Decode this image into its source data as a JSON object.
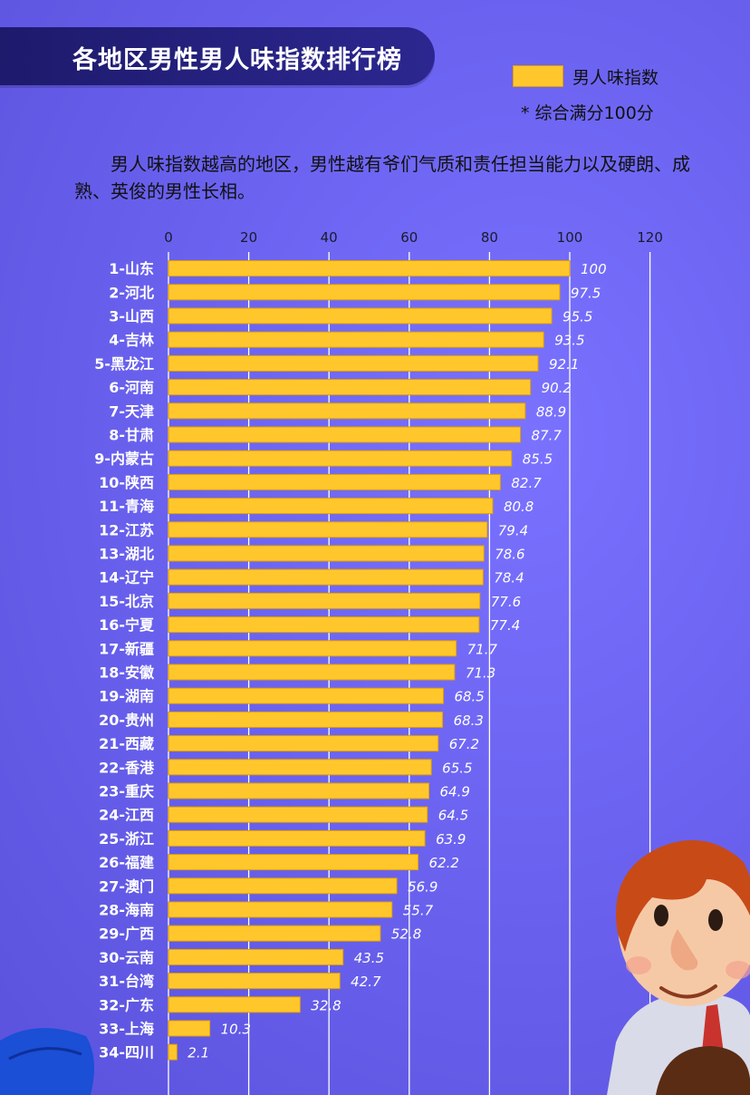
{
  "title": "各地区男性男人味指数排行榜",
  "legend": {
    "label": "男人味指数",
    "note": "* 综合满分100分"
  },
  "description": "男人味指数越高的地区，男性越有爷们气质和责任担当能力以及硬朗、成熟、英俊的男性长相。",
  "colors": {
    "background": "#6b63f0",
    "bar": "#ffc72c",
    "bar_border": "#e29f00",
    "title_bg": "#1d1a6b"
  },
  "chart_data": {
    "type": "bar",
    "orientation": "horizontal",
    "title": "各地区男性男人味指数排行榜",
    "xlim": [
      0,
      120
    ],
    "x_ticks": [
      "0",
      "20",
      "40",
      "60",
      "80",
      "100",
      "120"
    ],
    "grid": true,
    "legend_position": "top-right",
    "series": [
      {
        "name": "男人味指数"
      }
    ],
    "categories": [
      "1-山东",
      "2-河北",
      "3-山西",
      "4-吉林",
      "5-黑龙江",
      "6-河南",
      "7-天津",
      "8-甘肃",
      "9-内蒙古",
      "10-陕西",
      "11-青海",
      "12-江苏",
      "13-湖北",
      "14-辽宁",
      "15-北京",
      "16-宁夏",
      "17-新疆",
      "18-安徽",
      "19-湖南",
      "20-贵州",
      "21-西藏",
      "22-香港",
      "23-重庆",
      "24-江西",
      "25-浙江",
      "26-福建",
      "27-澳门",
      "28-海南",
      "29-广西",
      "30-云南",
      "31-台湾",
      "32-广东",
      "33-上海",
      "34-四川"
    ],
    "values": [
      100,
      97.5,
      95.5,
      93.5,
      92.1,
      90.2,
      88.9,
      87.7,
      85.5,
      82.7,
      80.8,
      79.4,
      78.6,
      78.4,
      77.6,
      77.4,
      71.7,
      71.3,
      68.5,
      68.3,
      67.2,
      65.5,
      64.9,
      64.5,
      63.9,
      62.2,
      56.9,
      55.7,
      52.8,
      43.5,
      42.7,
      32.8,
      10.3,
      2.1
    ],
    "value_labels": [
      "100",
      "97.5",
      "95.5",
      "93.5",
      "92.1",
      "90.2",
      "88.9",
      "87.7",
      "85.5",
      "82.7",
      "80.8",
      "79.4",
      "78.6",
      "78.4",
      "77.6",
      "77.4",
      "71.7",
      "71.3",
      "68.5",
      "68.3",
      "67.2",
      "65.5",
      "64.9",
      "64.5",
      "63.9",
      "62.2",
      "56.9",
      "55.7",
      "52.8",
      "43.5",
      "42.7",
      "32.8",
      "10.3",
      "2.1"
    ]
  }
}
